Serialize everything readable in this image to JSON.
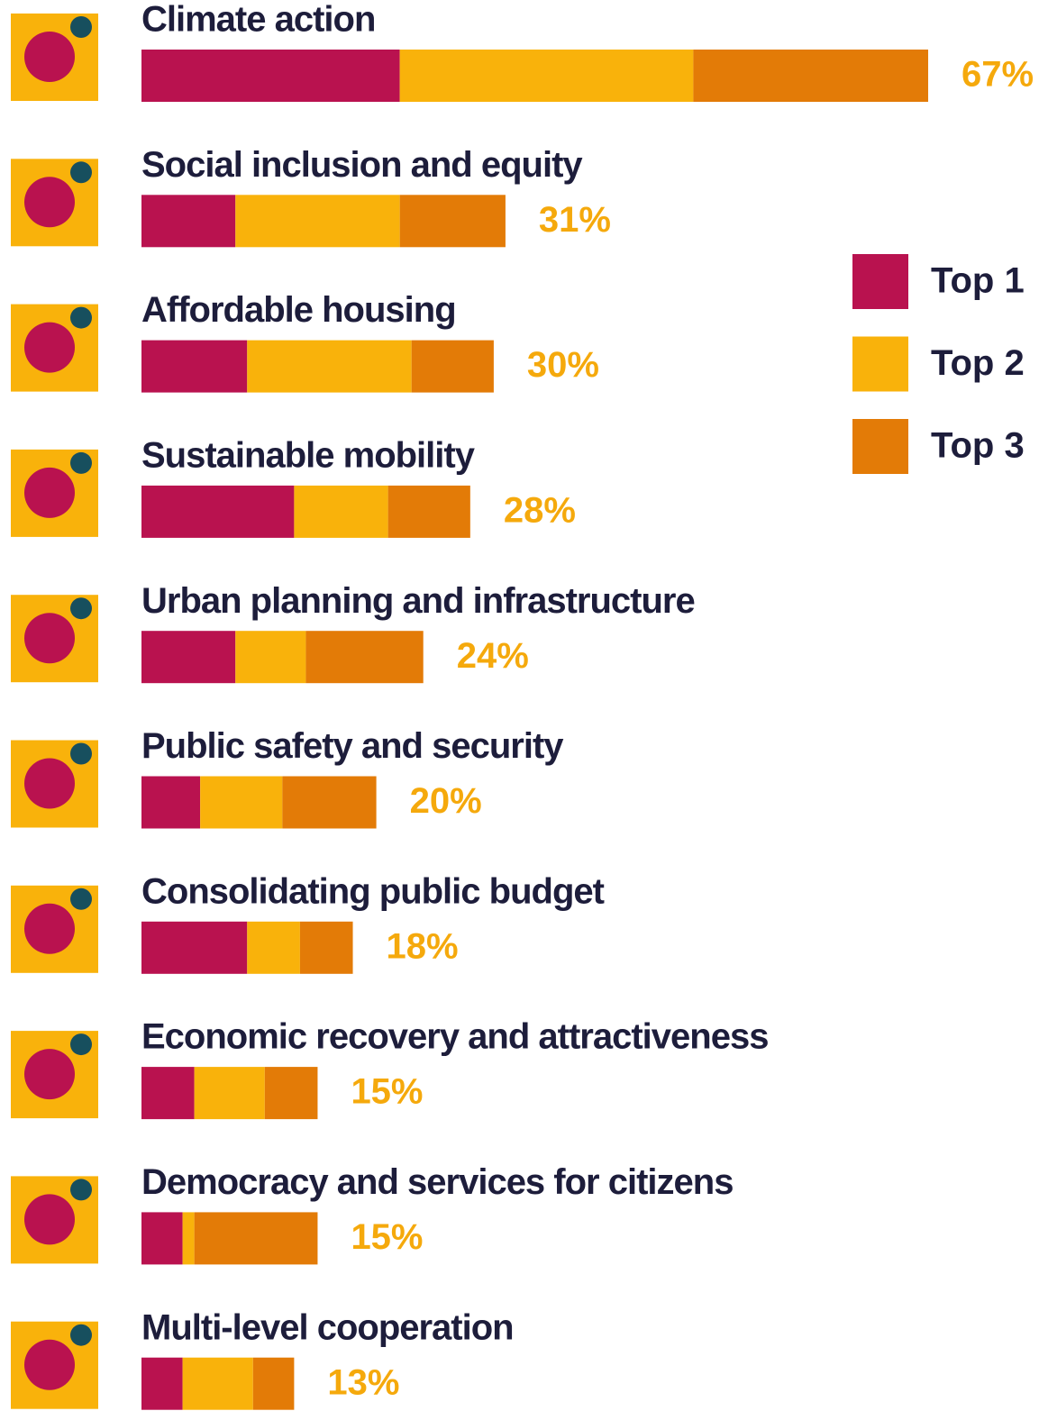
{
  "chart_data": {
    "type": "stacked-bar-horizontal",
    "categories": [
      "Climate action",
      "Social inclusion and equity",
      "Affordable housing",
      "Sustainable mobility",
      "Urban planning and infrastructure",
      "Public safety and security",
      "Consolidating public budget",
      "Economic recovery and attractiveness",
      "Democracy and services for citizens",
      "Multi-level cooperation"
    ],
    "series": [
      {
        "name": "Top 1",
        "color": "#b9124f",
        "values": [
          22,
          8,
          9,
          13,
          8,
          5,
          9,
          4.5,
          3.5,
          3.5
        ]
      },
      {
        "name": "Top 2",
        "color": "#f9b20b",
        "values": [
          25,
          14,
          14,
          8,
          6,
          7,
          4.5,
          6,
          1,
          6
        ]
      },
      {
        "name": "Top 3",
        "color": "#e37b07",
        "values": [
          20,
          9,
          7,
          7,
          10,
          8,
          4.5,
          4.5,
          10.5,
          3.5
        ]
      }
    ],
    "totals": [
      67,
      31,
      30,
      28,
      24,
      20,
      18,
      15,
      15,
      13
    ],
    "total_labels": [
      "67%",
      "31%",
      "30%",
      "28%",
      "24%",
      "20%",
      "18%",
      "15%",
      "15%",
      "13%"
    ],
    "legend": "right"
  }
}
